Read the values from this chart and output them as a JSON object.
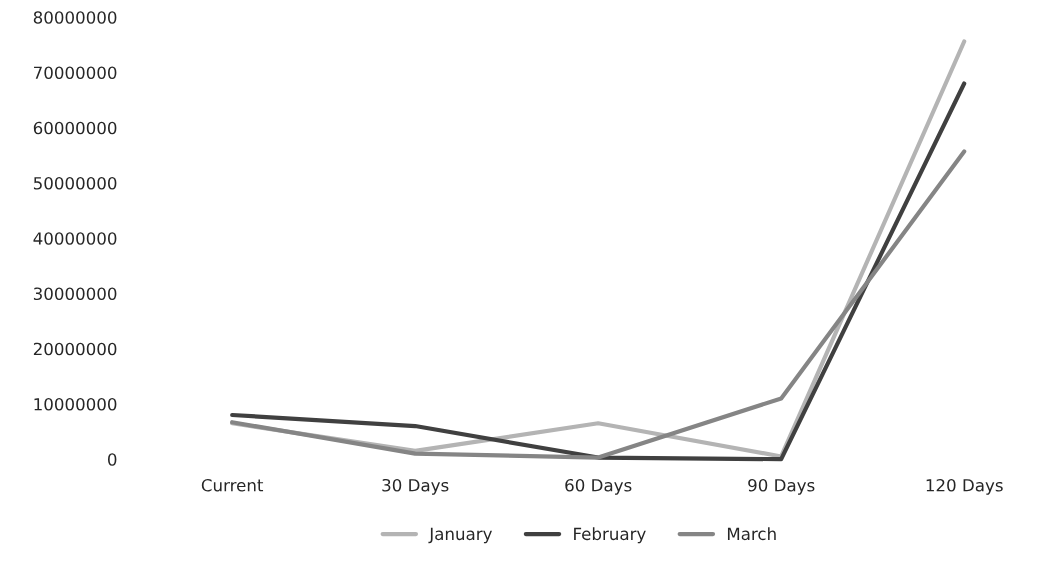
{
  "chart_data": {
    "type": "line",
    "categories": [
      "Current",
      "30 Days",
      "60 Days",
      "90 Days",
      "120 Days"
    ],
    "series": [
      {
        "name": "January",
        "color": "#b4b4b4",
        "values": [
          6500000,
          1500000,
          6500000,
          500000,
          75600000
        ]
      },
      {
        "name": "February",
        "color": "#404040",
        "values": [
          8000000,
          6000000,
          300000,
          0,
          68000000
        ]
      },
      {
        "name": "March",
        "color": "#858585",
        "values": [
          6700000,
          1000000,
          300000,
          11000000,
          55700000
        ]
      }
    ],
    "ylim": [
      0,
      80000000
    ],
    "yticks": [
      0,
      10000000,
      20000000,
      30000000,
      40000000,
      50000000,
      60000000,
      70000000,
      80000000
    ],
    "grid": false,
    "legend": "bottom",
    "marker": "none",
    "line_style": "solid"
  }
}
